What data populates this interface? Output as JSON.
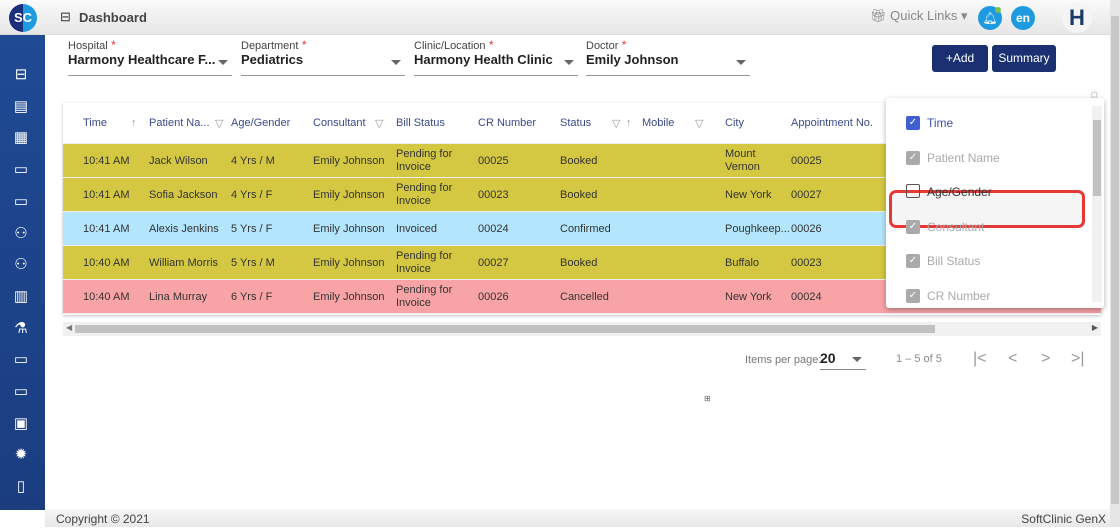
{
  "app": {
    "logo": "SC",
    "title": "Dashboard",
    "quick_links": "Quick Links",
    "lang": "en",
    "user_initial": "H"
  },
  "sidebar": {
    "icons": [
      "briefcase-icon",
      "id-card-icon",
      "calendar-icon",
      "monitor-icon",
      "monitor-icon",
      "users-icon",
      "users-icon",
      "clipboard-icon",
      "flask-icon",
      "monitor-icon",
      "monitor-icon",
      "safe-icon",
      "gear-icon",
      "book-icon",
      "more-icon"
    ]
  },
  "filters": {
    "hospital": {
      "label": "Hospital",
      "value": "Harmony Healthcare F..."
    },
    "department": {
      "label": "Department",
      "value": "Pediatrics"
    },
    "clinic": {
      "label": "Clinic/Location",
      "value": "Harmony Health Clinic"
    },
    "doctor": {
      "label": "Doctor",
      "value": "Emily Johnson"
    },
    "required_mark": "*"
  },
  "toolbar": {
    "add": "+Add",
    "summary": "Summary"
  },
  "table": {
    "columns": [
      "Time",
      "Patient Na...",
      "Age/Gender",
      "Consultant",
      "Bill Status",
      "CR Number",
      "Status",
      "Mobile",
      "City",
      "Appointment No."
    ],
    "rows": [
      {
        "time": "10:41 AM",
        "patient": "Jack Wilson",
        "age": "4 Yrs / M",
        "consultant": "Emily Johnson",
        "bill": "Pending for Invoice",
        "cr": "00025",
        "status": "Booked",
        "mobile": "",
        "city": "Mount Vernon",
        "appt": "00025",
        "color": "#d4c843"
      },
      {
        "time": "10:41 AM",
        "patient": "Sofia Jackson",
        "age": "4 Yrs / F",
        "consultant": "Emily Johnson",
        "bill": "Pending for Invoice",
        "cr": "00023",
        "status": "Booked",
        "mobile": "",
        "city": "New York",
        "appt": "00027",
        "color": "#d4c843"
      },
      {
        "time": "10:41 AM",
        "patient": "Alexis Jenkins",
        "age": "5 Yrs / F",
        "consultant": "Emily Johnson",
        "bill": "Invoiced",
        "cr": "00024",
        "status": "Confirmed",
        "mobile": "",
        "city": "Poughkeep...",
        "appt": "00026",
        "color": "#b3e5fc"
      },
      {
        "time": "10:40 AM",
        "patient": "William Morris",
        "age": "5 Yrs / M",
        "consultant": "Emily Johnson",
        "bill": "Pending for Invoice",
        "cr": "00027",
        "status": "Booked",
        "mobile": "",
        "city": "Buffalo",
        "appt": "00023",
        "color": "#d4c843"
      },
      {
        "time": "10:40 AM",
        "patient": "Lina Murray",
        "age": "6 Yrs / F",
        "consultant": "Emily Johnson",
        "bill": "Pending for Invoice",
        "cr": "00026",
        "status": "Cancelled",
        "mobile": "",
        "city": "New York",
        "appt": "00024",
        "color": "#f8a3a6"
      }
    ]
  },
  "column_picker": {
    "options": [
      {
        "label": "Time",
        "checked": true,
        "disabled": false
      },
      {
        "label": "Patient Name",
        "checked": true,
        "disabled": true
      },
      {
        "label": "Age/Gender",
        "checked": false,
        "disabled": false,
        "highlighted": true
      },
      {
        "label": "Consultant",
        "checked": true,
        "disabled": true
      },
      {
        "label": "Bill Status",
        "checked": true,
        "disabled": true
      },
      {
        "label": "CR Number",
        "checked": true,
        "disabled": true
      }
    ]
  },
  "pagination": {
    "items_per_page_label": "Items per page:",
    "items_per_page": "20",
    "range": "1 – 5 of 5"
  },
  "footer": {
    "copyright": "Copyright © 2021",
    "product": "SoftClinic GenX"
  },
  "colors": {
    "sidebar": "#1f4a94",
    "button": "#1a3071",
    "highlight": "#e53935"
  }
}
